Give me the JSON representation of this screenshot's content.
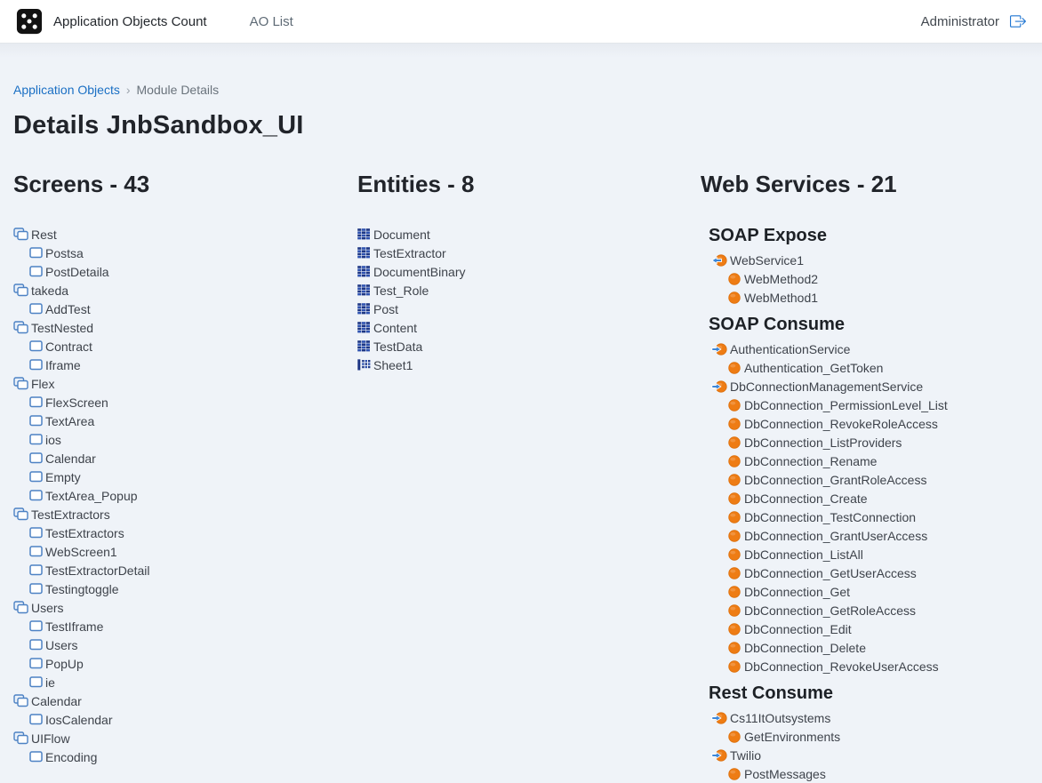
{
  "header": {
    "app_title": "Application Objects Count",
    "nav": [
      {
        "label": "AO List"
      }
    ],
    "user": "Administrator",
    "logo_icon": "dice-5-icon",
    "logout_icon": "box-arrow-right-icon"
  },
  "breadcrumb": {
    "link": "Application Objects",
    "separator": "›",
    "current": "Module Details"
  },
  "page_title": "Details JnbSandbox_UI",
  "colors": {
    "link_blue": "#1a6fc4",
    "tree_icon_blue": "#4d82c4",
    "entity_navy": "#1d3684",
    "entity_blue": "#2e52b0",
    "service_orange": "#ee7c14",
    "arrow_blue": "#3c86d8",
    "logout_blue": "#2176d2",
    "page_background": "#eff3f8"
  },
  "screens": {
    "title": "Screens - 43",
    "group_icon": "ui-flow-folder-icon",
    "item_icon": "screen-icon",
    "groups": [
      {
        "name": "Rest",
        "children": [
          "Postsa",
          "PostDetaila"
        ]
      },
      {
        "name": "takeda",
        "children": [
          "AddTest"
        ]
      },
      {
        "name": "TestNested",
        "children": [
          "Contract",
          "Iframe"
        ]
      },
      {
        "name": "Flex",
        "children": [
          "FlexScreen",
          "TextArea",
          "ios",
          "Calendar",
          "Empty",
          "TextArea_Popup"
        ]
      },
      {
        "name": "TestExtractors",
        "children": [
          "TestExtractors",
          "WebScreen1",
          "TestExtractorDetail",
          "Testingtoggle"
        ]
      },
      {
        "name": "Users",
        "children": [
          "TestIframe",
          "Users",
          "PopUp",
          "ie"
        ]
      },
      {
        "name": "Calendar",
        "children": [
          "IosCalendar"
        ]
      },
      {
        "name": "UIFlow",
        "children": [
          "Encoding"
        ]
      }
    ]
  },
  "entities": {
    "title": "Entities - 8",
    "items": [
      {
        "name": "Document",
        "icon": "entity-table-icon"
      },
      {
        "name": "TestExtractor",
        "icon": "entity-table-icon"
      },
      {
        "name": "DocumentBinary",
        "icon": "entity-table-icon"
      },
      {
        "name": "Test_Role",
        "icon": "entity-table-icon"
      },
      {
        "name": "Post",
        "icon": "entity-table-icon"
      },
      {
        "name": "Content",
        "icon": "entity-table-icon"
      },
      {
        "name": "TestData",
        "icon": "entity-table-icon"
      },
      {
        "name": "Sheet1",
        "icon": "entity-sheet-icon"
      }
    ]
  },
  "web_services": {
    "title": "Web Services - 21",
    "method_icon": "method-circle-icon",
    "sections": [
      {
        "heading": "SOAP Expose",
        "services": [
          {
            "name": "WebService1",
            "icon": "soap-expose-icon",
            "methods": [
              "WebMethod2",
              "WebMethod1"
            ]
          }
        ]
      },
      {
        "heading": "SOAP Consume",
        "services": [
          {
            "name": "AuthenticationService",
            "icon": "soap-consume-icon",
            "methods": [
              "Authentication_GetToken"
            ]
          },
          {
            "name": "DbConnectionManagementService",
            "icon": "soap-consume-icon",
            "methods": [
              "DbConnection_PermissionLevel_List",
              "DbConnection_RevokeRoleAccess",
              "DbConnection_ListProviders",
              "DbConnection_Rename",
              "DbConnection_GrantRoleAccess",
              "DbConnection_Create",
              "DbConnection_TestConnection",
              "DbConnection_GrantUserAccess",
              "DbConnection_ListAll",
              "DbConnection_GetUserAccess",
              "DbConnection_Get",
              "DbConnection_GetRoleAccess",
              "DbConnection_Edit",
              "DbConnection_Delete",
              "DbConnection_RevokeUserAccess"
            ]
          }
        ]
      },
      {
        "heading": "Rest Consume",
        "services": [
          {
            "name": "Cs11ItOutsystems",
            "icon": "soap-consume-icon",
            "methods": [
              "GetEnvironments"
            ]
          },
          {
            "name": "Twilio",
            "icon": "soap-consume-icon",
            "methods": [
              "PostMessages"
            ]
          }
        ]
      }
    ]
  }
}
